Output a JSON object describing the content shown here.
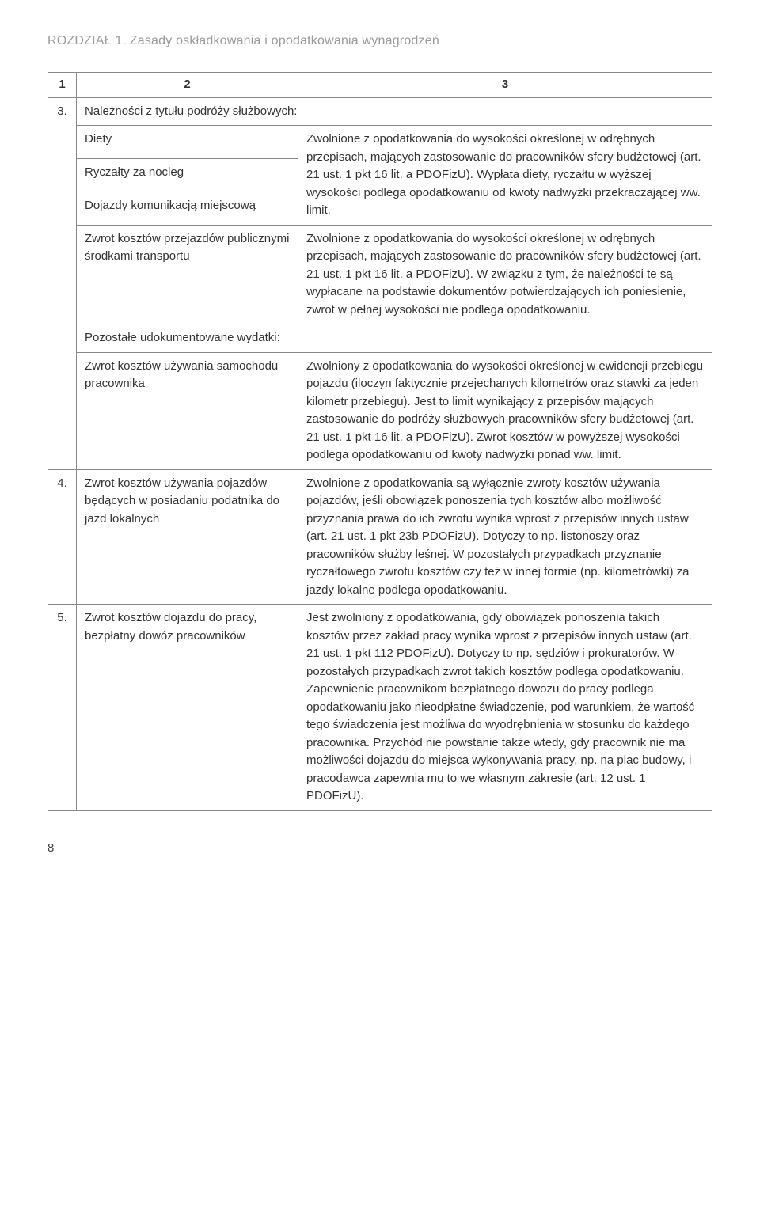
{
  "runningHead": "ROZDZIAŁ 1. Zasady oskładkowania i opodatkowania wynagrodzeń",
  "header": {
    "c1": "1",
    "c2": "2",
    "c3": "3"
  },
  "row3": {
    "num": "3.",
    "title": "Należności z tytułu podróży służbowych:",
    "leftA1": "Diety",
    "leftA2": "Ryczałty za nocleg",
    "leftA3": "Dojazdy komunikacją miejscową",
    "rightA": "Zwolnione z opodatkowania do wysokości określonej w odrębnych przepisach, mających zastosowanie do pracowników sfery budżetowej (art. 21 ust. 1 pkt 16 lit. a PDOFizU). Wypłata diety, ryczałtu w wyższej wysokości podlega opodatkowaniu od kwoty nadwyżki przekraczającej ww. limit.",
    "leftB": "Zwrot kosztów przejazdów publicznymi środkami transportu",
    "rightB": "Zwolnione z opodatkowania do wysokości określonej w odrębnych przepisach, mających zastosowanie do pracowników sfery budżetowej (art. 21 ust. 1 pkt 16 lit. a PDOFizU). W związku z tym, że należności te są wypłacane na podstawie dokumentów potwierdzających ich poniesienie, zwrot w pełnej wysokości nie podlega opodatkowaniu.",
    "subTitle": "Pozostałe udokumentowane wydatki:",
    "leftC": "Zwrot kosztów używania samochodu pracownika",
    "rightC": "Zwolniony z opodatkowania do wysokości określonej w ewidencji przebiegu pojazdu (iloczyn faktycznie przejechanych kilometrów oraz stawki za jeden kilometr przebiegu). Jest to limit wynikający z przepisów mających zastosowanie do podróży służbowych pracowników sfery budżetowej (art. 21 ust. 1 pkt 16 lit. a PDOFizU). Zwrot kosztów w powyższej wysokości podlega opodatkowaniu od kwoty nadwyżki ponad ww. limit."
  },
  "row4": {
    "num": "4.",
    "left": "Zwrot kosztów używania pojazdów będących w posiadaniu podatnika do jazd lokalnych",
    "right": "Zwolnione z opodatkowania są wyłącznie zwroty kosztów używania pojazdów, jeśli obowiązek ponoszenia tych kosztów albo możliwość przyznania prawa do ich zwrotu wynika wprost z przepisów innych ustaw (art. 21 ust. 1 pkt 23b PDOFizU). Dotyczy to np. listonoszy oraz pracowników służby leśnej. W pozostałych przypadkach przyznanie ryczałtowego zwrotu kosztów czy też w innej formie (np. kilometrówki) za jazdy lokalne podlega opodatkowaniu."
  },
  "row5": {
    "num": "5.",
    "left": "Zwrot kosztów dojazdu do pracy, bezpłatny dowóz pracowników",
    "right": "Jest zwolniony z opodatkowania, gdy obowiązek ponoszenia takich kosztów przez zakład pracy wynika wprost z przepisów innych ustaw (art. 21 ust. 1 pkt 112 PDOFizU). Dotyczy to np. sędziów i prokuratorów. W pozostałych przypadkach zwrot takich kosztów podlega opodatkowaniu. Zapewnienie pracownikom bezpłatnego dowozu do pracy podlega opodatkowaniu jako nieodpłatne świadczenie, pod warunkiem, że wartość tego świadczenia jest możliwa do wyodrębnienia w stosunku do każdego pracownika. Przychód nie powstanie także wtedy, gdy pracownik nie ma możliwości dojazdu do miejsca wykonywania pracy, np. na plac budowy, i pracodawca zapewnia mu to we własnym zakresie (art. 12 ust. 1 PDOFizU)."
  },
  "pageNum": "8",
  "colors": {
    "runningHead": "#9a9a9a",
    "border": "#888888",
    "text": "#333333"
  }
}
